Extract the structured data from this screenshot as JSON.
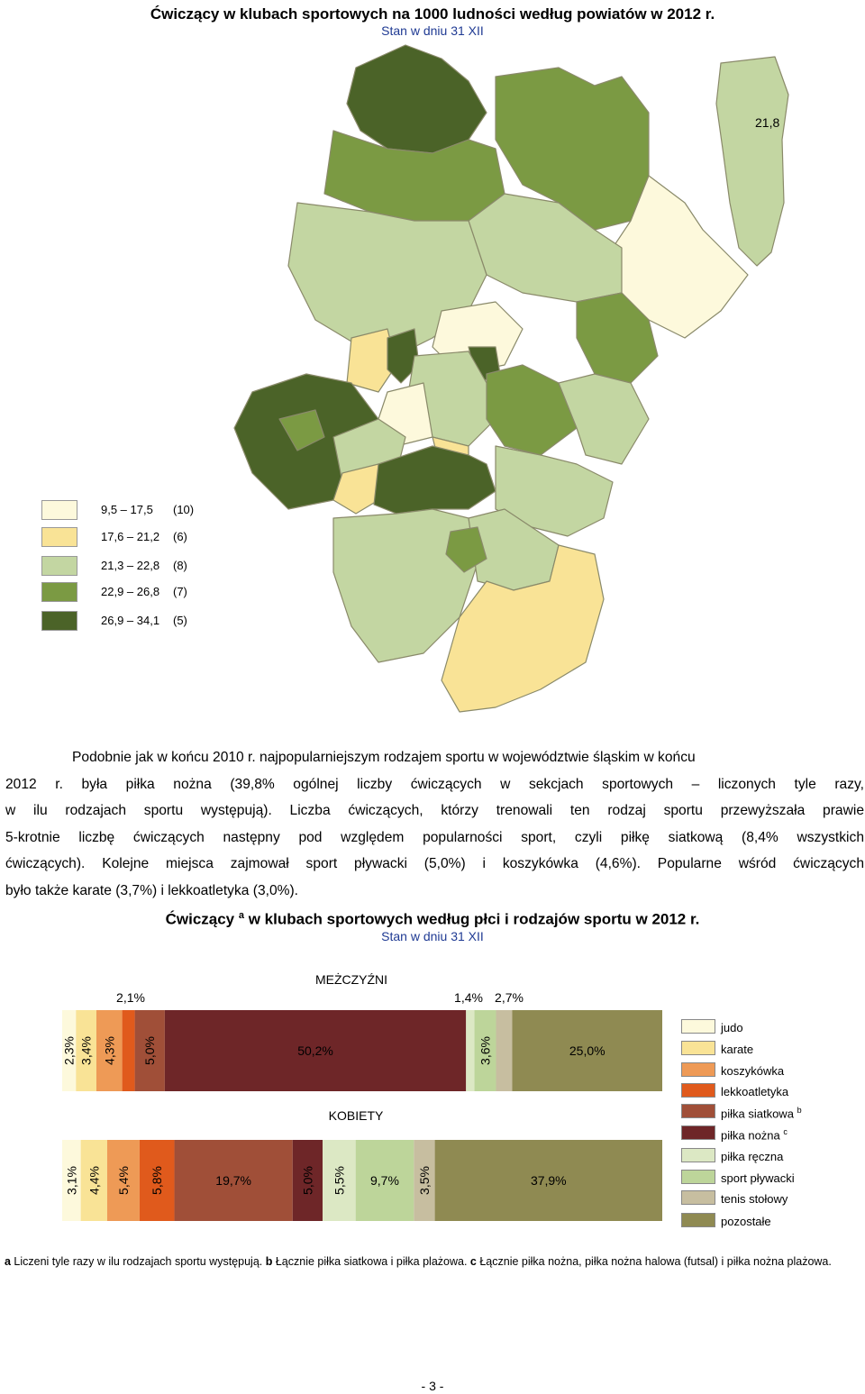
{
  "map_title": "Ćwiczący w klubach sportowych na 1000 ludności według powiatów w 2012 r.",
  "map_subtitle": "Stan w dniu 31 XII",
  "map_value_label": "21,8",
  "map_legend": [
    {
      "range": "9,5 – 17,5",
      "count": "(10)",
      "color": "#fdf9dc"
    },
    {
      "range": "17,6 – 21,2",
      "count": "(6)",
      "color": "#f9e396"
    },
    {
      "range": "21,3 – 22,8",
      "count": "(8)",
      "color": "#c3d6a2"
    },
    {
      "range": "22,9 – 26,8",
      "count": "(7)",
      "color": "#7b9a43"
    },
    {
      "range": "26,9 – 34,1",
      "count": "(5)",
      "color": "#4b6328"
    }
  ],
  "paragraph_lines": [
    "Podobnie jak w końcu 2010 r. najpopularniejszym rodzajem sportu w województwie śląskim w końcu",
    "2012 r. była piłka nożna (39,8% ogólnej liczby ćwiczących w sekcjach sportowych – liczonych tyle razy,",
    "w ilu rodzajach sportu występują). Liczba ćwiczących, którzy trenowali ten rodzaj sportu przewyższała prawie",
    "5-krotnie liczbę ćwiczących następny pod względem popularności sport, czyli piłkę siatkową (8,4% wszystkich",
    "ćwiczących). Kolejne miejsca zajmował sport pływacki (5,0%) i koszykówka (4,6%). Popularne wśród ćwiczących",
    "było także karate (3,7%) i lekkoatletyka (3,0%)."
  ],
  "chart_title_a": "Ćwiczący",
  "chart_title_sup": "a",
  "chart_title_b": "w klubach sportowych według płci i rodzajów sportu w 2012 r.",
  "chart_subtitle": "Stan w dniu 31 XII",
  "chart_data": {
    "type": "bar",
    "stacked": "100%",
    "orientation": "horizontal",
    "categories": [
      "judo",
      "karate",
      "koszykówka",
      "lekkoatletyka",
      "piłka siatkowa",
      "piłka nożna",
      "piłka ręczna",
      "sport pływacki",
      "tenis stołowy",
      "pozostałe"
    ],
    "legend_sup": [
      "",
      "",
      "",
      "",
      "b",
      "c",
      "",
      "",
      "",
      ""
    ],
    "colors": [
      "#fdf9dc",
      "#f9e396",
      "#ee9a56",
      "#e05a1c",
      "#a04f38",
      "#6e2628",
      "#dce8c4",
      "#bdd59a",
      "#c7bea0",
      "#8f8a52"
    ],
    "series": [
      {
        "name": "MEŻCZYŹNI",
        "values": [
          2.3,
          3.4,
          4.3,
          2.1,
          5.0,
          50.2,
          1.4,
          3.6,
          2.7,
          25.0
        ],
        "labels": [
          "2,3%",
          "3,4%",
          "4,3%",
          "2,1%",
          "5,0%",
          "50,2%",
          "1,4%",
          "3,6%",
          "2,7%",
          "25,0%"
        ]
      },
      {
        "name": "KOBIETY",
        "values": [
          3.1,
          4.4,
          5.4,
          5.8,
          19.7,
          5.0,
          5.5,
          9.7,
          3.5,
          37.9
        ],
        "labels": [
          "3,1%",
          "4,4%",
          "5,4%",
          "5,8%",
          "19,7%",
          "5,0%",
          "5,5%",
          "9,7%",
          "3,5%",
          "37,9%"
        ]
      }
    ],
    "legend_placement": "right"
  },
  "footnote": {
    "a_key": "a",
    "a_text": " Liczeni tyle razy w ilu rodzajach sportu występują. ",
    "b_key": "b",
    "b_text": " Łącznie piłka siatkowa i piłka plażowa. ",
    "c_key": "c",
    "c_text": " Łącznie piłka nożna, piłka nożna halowa (futsal) i piłka nożna plażowa."
  },
  "page_number": "- 3 -"
}
